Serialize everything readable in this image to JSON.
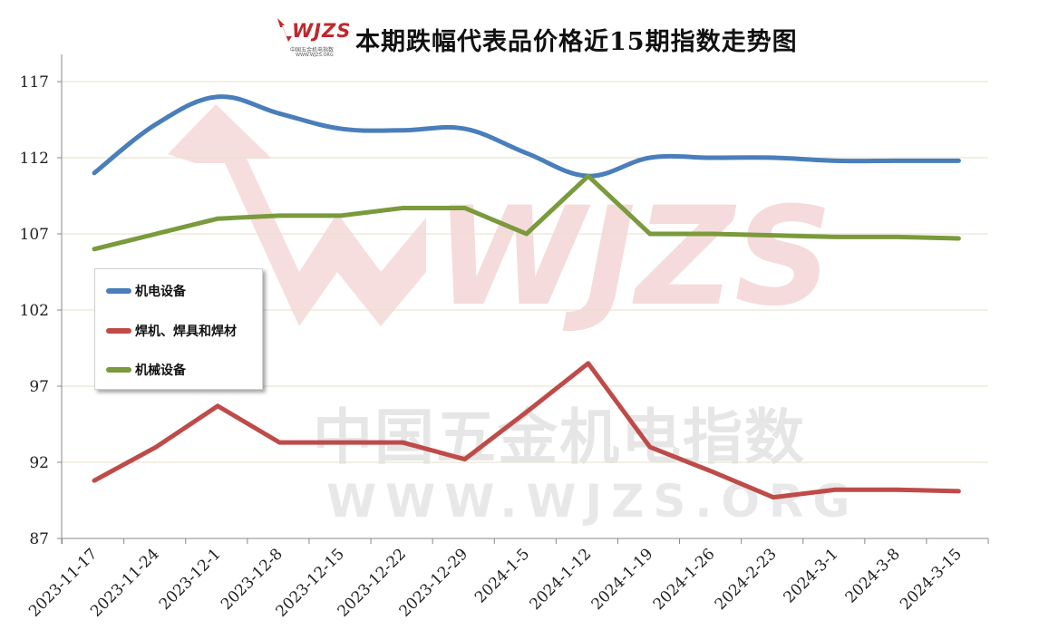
{
  "title": "本期跌幅代表品价格近15期指数走势图",
  "logo": {
    "text": "WJZS",
    "subtitle": "中国五金机电指数",
    "url": "WWW.WJZS.ORG"
  },
  "watermark": {
    "logo": "WJZS",
    "line1": "中国五金机电指数",
    "line2": "WWW.WJZS.ORG"
  },
  "chart_data": {
    "type": "line",
    "title": "本期跌幅代表品价格近15期指数走势图",
    "x": [
      "2023-11-17",
      "2023-11-24",
      "2023-12-1",
      "2023-12-8",
      "2023-12-15",
      "2023-12-22",
      "2023-12-29",
      "2024-1-5",
      "2024-1-12",
      "2024-1-19",
      "2024-1-26",
      "2024-2-23",
      "2024-3-1",
      "2024-3-8",
      "2024-3-15"
    ],
    "ylim": [
      87,
      117
    ],
    "yticks": [
      117,
      112,
      107,
      102,
      97,
      92,
      87
    ],
    "grid": true,
    "legend_position": "left",
    "series": [
      {
        "name": "机电设备",
        "color": "#4a7ebb",
        "values": [
          111.0,
          114.2,
          116.0,
          114.9,
          113.9,
          113.8,
          113.9,
          112.3,
          110.8,
          112.0,
          112.0,
          112.0,
          111.8,
          111.8,
          111.8
        ]
      },
      {
        "name": "焊机、焊具和焊材",
        "color": "#be4b48",
        "values": [
          90.8,
          93.0,
          95.7,
          93.3,
          93.3,
          93.3,
          92.2,
          95.3,
          98.5,
          93.0,
          91.4,
          89.7,
          90.2,
          90.2,
          90.1
        ]
      },
      {
        "name": "机械设备",
        "color": "#7a9a3c",
        "values": [
          106.0,
          107.0,
          108.0,
          108.2,
          108.2,
          108.7,
          108.7,
          107.0,
          110.8,
          107.0,
          107.0,
          106.9,
          106.8,
          106.8,
          106.7
        ]
      }
    ]
  }
}
